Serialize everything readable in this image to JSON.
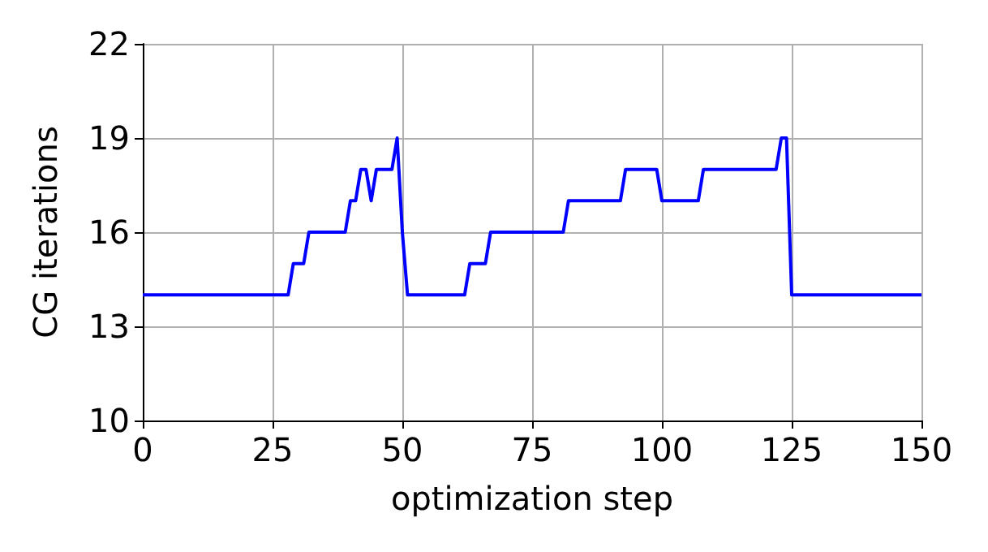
{
  "chart_data": {
    "type": "line",
    "xlabel": "optimization step",
    "ylabel": "CG iterations",
    "x": [
      0,
      28,
      29,
      31,
      32,
      39,
      40,
      41,
      42,
      43,
      44,
      45,
      48,
      49,
      50,
      51,
      62,
      63,
      66,
      67,
      81,
      82,
      92,
      93,
      99,
      100,
      107,
      108,
      122,
      123,
      124,
      125,
      150
    ],
    "series": [
      {
        "color": "#0000ff",
        "values": [
          14,
          14,
          15,
          15,
          16,
          16,
          17,
          17,
          18,
          18,
          17,
          18,
          18,
          19,
          16,
          14,
          14,
          15,
          15,
          16,
          16,
          17,
          17,
          18,
          18,
          17,
          17,
          18,
          18,
          19,
          19,
          14,
          14
        ]
      }
    ],
    "xlim": [
      0,
      150
    ],
    "xticks": [
      0,
      25,
      50,
      75,
      100,
      125,
      150
    ],
    "ylim": [
      10,
      22
    ],
    "yticks": [
      10,
      13,
      16,
      19,
      22
    ],
    "grid": true,
    "marker": "none",
    "line_style": "solid"
  }
}
